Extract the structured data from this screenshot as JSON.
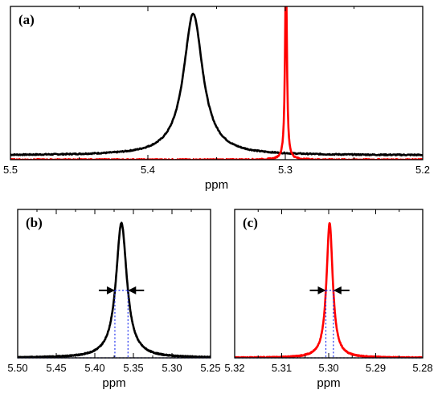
{
  "chart_data": [
    {
      "panel_label": "(a)",
      "type": "line",
      "xlabel": "ppm",
      "xlim": [
        5.5,
        5.2
      ],
      "x_reversed": true,
      "x_ticks": [
        "5.5",
        "5.4",
        "5.3",
        "5.2"
      ],
      "ylim": [
        0,
        1.05
      ],
      "y_axis_labels_shown": false,
      "series": [
        {
          "color": "#000000",
          "baseline": 0.03,
          "peak_center": 5.367,
          "peak_height": 0.97,
          "half_width": 0.0085
        },
        {
          "color": "#ff0000",
          "baseline": 0.0,
          "peak_center": 5.2995,
          "peak_height": 1.32,
          "half_width": 0.0008
        }
      ]
    },
    {
      "panel_label": "(b)",
      "type": "line",
      "xlabel": "ppm",
      "xlim": [
        5.5,
        5.25
      ],
      "x_reversed": true,
      "x_ticks": [
        "5.50",
        "5.45",
        "5.40",
        "5.35",
        "5.30",
        "5.25"
      ],
      "ylim": [
        0,
        1.1
      ],
      "y_axis_labels_shown": false,
      "series": [
        {
          "color": "#000000",
          "baseline": 0.0,
          "peak_center": 5.3655,
          "peak_height": 1.0,
          "half_width": 0.0085
        }
      ],
      "fwhm_markers": {
        "left": 5.374,
        "right": 5.357,
        "height": 0.5,
        "color": "#2233ee"
      }
    },
    {
      "panel_label": "(c)",
      "type": "line",
      "xlabel": "ppm",
      "xlim": [
        5.32,
        5.28
      ],
      "x_reversed": true,
      "x_ticks": [
        "5.32",
        "5.31",
        "5.30",
        "5.29",
        "5.28"
      ],
      "ylim": [
        0,
        1.1
      ],
      "y_axis_labels_shown": false,
      "series": [
        {
          "color": "#ff0000",
          "baseline": 0.0,
          "peak_center": 5.2998,
          "peak_height": 1.0,
          "half_width": 0.0008
        }
      ],
      "fwhm_markers": {
        "left": 5.3006,
        "right": 5.299,
        "height": 0.5,
        "color": "#2233ee"
      }
    }
  ]
}
